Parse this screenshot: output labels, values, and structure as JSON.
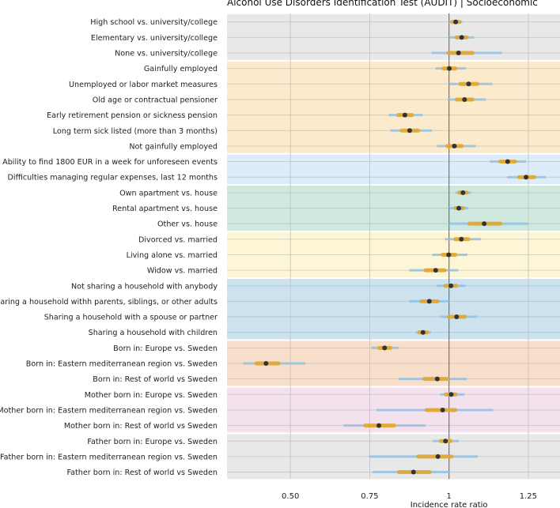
{
  "chart_data": {
    "type": "forest",
    "title": "Alcohol Use Disorders Identification Test (AUDIT) | Socioeconomic",
    "xlabel": "Incidence rate ratio",
    "xlim": [
      0.3,
      1.35
    ],
    "xticks": [
      0.5,
      0.75,
      1,
      1.25
    ],
    "xtick_labels": [
      "0.50",
      "0.75",
      "1",
      "1.25"
    ],
    "reference_line": 1,
    "grid": true,
    "colors": {
      "point": "#333333",
      "inner_ci": "#e2a72e",
      "outer_ci": "#8fc0e4",
      "reference": "#777777"
    },
    "groups": [
      {
        "band_color": "#e8e8e8",
        "rows": [
          {
            "label": "High school vs. university/college",
            "estimate": 1.021,
            "inner": [
              1.011,
              1.033
            ],
            "outer": [
              1.0,
              1.042
            ]
          },
          {
            "label": "Elementary vs. university/college",
            "estimate": 1.04,
            "inner": [
              1.023,
              1.056
            ],
            "outer": [
              1.0,
              1.079
            ]
          },
          {
            "label": "None vs. university/college",
            "estimate": 1.03,
            "inner": [
              0.998,
              1.074
            ],
            "outer": [
              0.945,
              1.167
            ]
          }
        ]
      },
      {
        "band_color": "#fbeacc",
        "rows": [
          {
            "label": "Gainfully employed",
            "estimate": 1.001,
            "inner": [
              0.983,
              1.02
            ],
            "outer": [
              0.957,
              1.054
            ]
          },
          {
            "label": "Unemployed or labor market measures",
            "estimate": 1.062,
            "inner": [
              1.036,
              1.089
            ],
            "outer": [
              1.0,
              1.137
            ]
          },
          {
            "label": "Old age or contractual pensioner",
            "estimate": 1.049,
            "inner": [
              1.025,
              1.074
            ],
            "outer": [
              0.996,
              1.116
            ]
          },
          {
            "label": "Early retirement pension or sickness pension",
            "estimate": 0.861,
            "inner": [
              0.84,
              0.883
            ],
            "outer": [
              0.81,
              0.917
            ]
          },
          {
            "label": "Long term sick listed (more than 3 months)",
            "estimate": 0.876,
            "inner": [
              0.851,
              0.903
            ],
            "outer": [
              0.815,
              0.946
            ]
          },
          {
            "label": "Not gainfully employed",
            "estimate": 1.017,
            "inner": [
              0.995,
              1.04
            ],
            "outer": [
              0.962,
              1.084
            ]
          }
        ]
      },
      {
        "band_color": "#dcedf9",
        "rows": [
          {
            "label": "Ability to find 1800 EUR in a week for unforeseen events",
            "estimate": 1.185,
            "inner": [
              1.162,
              1.208
            ],
            "outer": [
              1.129,
              1.243
            ]
          },
          {
            "label": "Difficulties managing regular expenses, last 12 months",
            "estimate": 1.243,
            "inner": [
              1.221,
              1.269
            ],
            "outer": [
              1.183,
              1.306
            ]
          }
        ]
      },
      {
        "band_color": "#cfe9df",
        "rows": [
          {
            "label": "Own apartment vs. house",
            "estimate": 1.044,
            "inner": [
              1.032,
              1.056
            ],
            "outer": [
              1.02,
              1.069
            ]
          },
          {
            "label": "Rental apartment vs. house",
            "estimate": 1.031,
            "inner": [
              1.02,
              1.045
            ],
            "outer": [
              1.0,
              1.061
            ]
          },
          {
            "label": "Other vs. house",
            "estimate": 1.111,
            "inner": [
              1.064,
              1.162
            ],
            "outer": [
              1.0,
              1.25
            ]
          }
        ]
      },
      {
        "band_color": "#fdf6d6",
        "rows": [
          {
            "label": "Divorced vs. married",
            "estimate": 1.039,
            "inner": [
              1.02,
              1.061
            ],
            "outer": [
              0.987,
              1.101
            ]
          },
          {
            "label": "Living alone vs. married",
            "estimate": 0.999,
            "inner": [
              0.98,
              1.02
            ],
            "outer": [
              0.947,
              1.058
            ]
          },
          {
            "label": "Widow vs. married",
            "estimate": 0.958,
            "inner": [
              0.926,
              0.986
            ],
            "outer": [
              0.875,
              1.029
            ]
          }
        ]
      },
      {
        "band_color": "#cde2ef",
        "rows": [
          {
            "label": "Not sharing a household with anybody",
            "estimate": 1.006,
            "inner": [
              0.988,
              1.023
            ],
            "outer": [
              0.962,
              1.052
            ]
          },
          {
            "label": "Sharing a household withh parents, siblings, or other adults",
            "estimate": 0.938,
            "inner": [
              0.913,
              0.964
            ],
            "outer": [
              0.875,
              1.0
            ]
          },
          {
            "label": "Sharing a household with a spouse or partner",
            "estimate": 1.024,
            "inner": [
              1.0,
              1.05
            ],
            "outer": [
              0.972,
              1.089
            ]
          },
          {
            "label": "Sharing a household with children",
            "estimate": 0.918,
            "inner": [
              0.906,
              0.931
            ],
            "outer": [
              0.894,
              0.944
            ]
          }
        ]
      },
      {
        "band_color": "#f7dfcb",
        "rows": [
          {
            "label": "Born in: Europe vs. Sweden",
            "estimate": 0.797,
            "inner": [
              0.78,
              0.815
            ],
            "outer": [
              0.755,
              0.842
            ]
          },
          {
            "label": "Born in: Eastern mediterranean region vs. Sweden",
            "estimate": 0.423,
            "inner": [
              0.392,
              0.462
            ],
            "outer": [
              0.351,
              0.547
            ]
          },
          {
            "label": "Born in: Rest of world vs Sweden",
            "estimate": 0.963,
            "inner": [
              0.922,
              0.997
            ],
            "outer": [
              0.842,
              1.056
            ]
          }
        ]
      },
      {
        "band_color": "#f3e2ee",
        "rows": [
          {
            "label": "Mother born in: Europe vs. Sweden",
            "estimate": 1.007,
            "inner": [
              0.99,
              1.021
            ],
            "outer": [
              0.972,
              1.049
            ]
          },
          {
            "label": "Mother born in: Eastern mediterranean region vs. Sweden",
            "estimate": 0.98,
            "inner": [
              0.929,
              1.02
            ],
            "outer": [
              0.771,
              1.139
            ]
          },
          {
            "label": "Mother born in: Rest of world vs Sweden",
            "estimate": 0.779,
            "inner": [
              0.736,
              0.827
            ],
            "outer": [
              0.668,
              0.927
            ]
          }
        ]
      },
      {
        "band_color": "#e8e8e8",
        "rows": [
          {
            "label": "Father born in: Europe vs. Sweden",
            "estimate": 0.989,
            "inner": [
              0.974,
              1.005
            ],
            "outer": [
              0.949,
              1.031
            ]
          },
          {
            "label": "Father born in: Eastern mediterranean region vs. Sweden",
            "estimate": 0.965,
            "inner": [
              0.903,
              1.008
            ],
            "outer": [
              0.748,
              1.091
            ]
          },
          {
            "label": "Father born in: Rest of world vs Sweden",
            "estimate": 0.888,
            "inner": [
              0.842,
              0.939
            ],
            "outer": [
              0.759,
              1.003
            ]
          }
        ]
      }
    ]
  }
}
